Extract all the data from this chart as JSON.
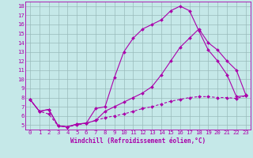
{
  "xlabel": "Windchill (Refroidissement éolien,°C)",
  "bg_color": "#c5e8e8",
  "line_color": "#aa00aa",
  "grid_color": "#99bbbb",
  "xlim": [
    -0.5,
    23.5
  ],
  "ylim": [
    4.5,
    18.5
  ],
  "xticks": [
    0,
    1,
    2,
    3,
    4,
    5,
    6,
    7,
    8,
    9,
    10,
    11,
    12,
    13,
    14,
    15,
    16,
    17,
    18,
    19,
    20,
    21,
    22,
    23
  ],
  "yticks": [
    5,
    6,
    7,
    8,
    9,
    10,
    11,
    12,
    13,
    14,
    15,
    16,
    17,
    18
  ],
  "line1_x": [
    0,
    1,
    2,
    3,
    4,
    5,
    6,
    7,
    8,
    9,
    10,
    11,
    12,
    13,
    14,
    15,
    16,
    17,
    18,
    19,
    20,
    21,
    22,
    23
  ],
  "line1_y": [
    7.8,
    6.5,
    6.7,
    4.9,
    4.8,
    5.1,
    5.2,
    6.8,
    7.0,
    10.2,
    13.0,
    14.5,
    15.5,
    16.0,
    16.5,
    17.5,
    18.0,
    17.5,
    15.3,
    13.2,
    12.0,
    10.5,
    8.1,
    8.2
  ],
  "line2_x": [
    0,
    1,
    2,
    3,
    4,
    5,
    6,
    7,
    8,
    9,
    10,
    11,
    12,
    13,
    14,
    15,
    16,
    17,
    18,
    19,
    20,
    21,
    22,
    23
  ],
  "line2_y": [
    7.8,
    6.5,
    6.7,
    4.9,
    4.8,
    5.1,
    5.2,
    5.5,
    6.5,
    7.0,
    7.5,
    8.0,
    8.5,
    9.2,
    10.5,
    12.0,
    13.5,
    14.5,
    15.5,
    14.0,
    13.2,
    12.0,
    11.0,
    8.3
  ],
  "line3_x": [
    0,
    1,
    2,
    3,
    4,
    5,
    6,
    7,
    8,
    9,
    10,
    11,
    12,
    13,
    14,
    15,
    16,
    17,
    18,
    19,
    20,
    21,
    22,
    23
  ],
  "line3_y": [
    7.8,
    6.5,
    6.2,
    4.9,
    4.8,
    5.0,
    5.2,
    5.5,
    5.8,
    6.0,
    6.2,
    6.5,
    6.8,
    7.0,
    7.3,
    7.6,
    7.8,
    8.0,
    8.1,
    8.1,
    8.0,
    8.0,
    7.9,
    8.2
  ],
  "tick_fontsize": 5.2,
  "xlabel_fontsize": 5.5,
  "marker_size": 2.0,
  "line_width": 0.8
}
